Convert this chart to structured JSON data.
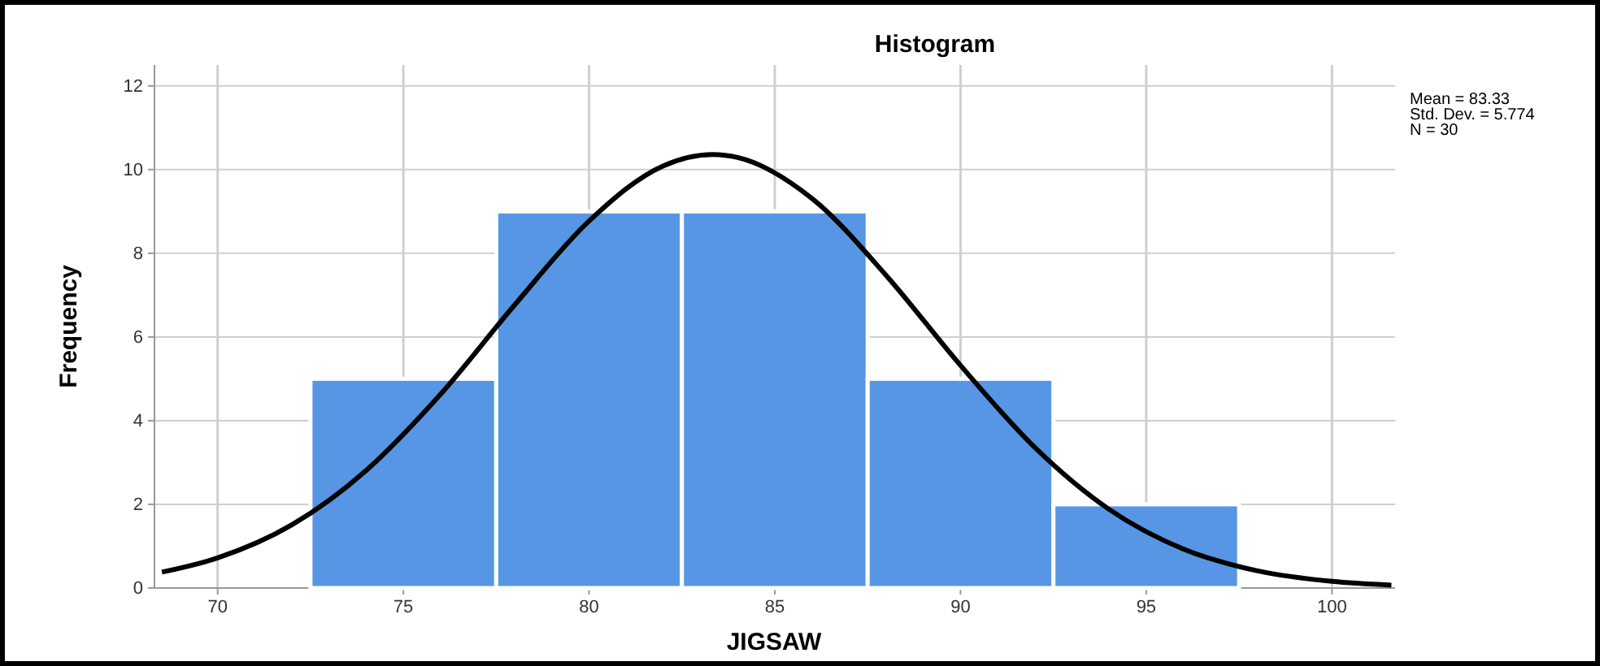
{
  "chart_data": {
    "type": "histogram",
    "title": "Histogram",
    "xlabel": "JIGSAW",
    "ylabel": "Frequency",
    "bins": [
      72.5,
      77.5,
      82.5,
      87.5,
      92.5,
      97.5
    ],
    "values": [
      5,
      9,
      9,
      5,
      2
    ],
    "color": "#5796e4",
    "series": [
      {
        "type": "line",
        "color": "#000000",
        "x": [
          68.5,
          70,
          72,
          74,
          76,
          78,
          80,
          82,
          83.33,
          84,
          86,
          88,
          90,
          92,
          94,
          96,
          98,
          100,
          101.6
        ],
        "values": [
          0.38,
          0.72,
          1.51,
          2.81,
          4.63,
          6.77,
          8.77,
          10.09,
          10.36,
          10.29,
          9.31,
          7.47,
          5.32,
          3.36,
          1.88,
          0.93,
          0.41,
          0.16,
          0.07
        ]
      }
    ],
    "xlim": [
      68.3,
      101.7
    ],
    "xticks": [
      70,
      75,
      80,
      85,
      90,
      95,
      100
    ],
    "ylim": [
      0,
      12.5
    ],
    "yticks": [
      0,
      2,
      4,
      6,
      8,
      10,
      12
    ],
    "grid": true,
    "marker": "none",
    "annotations": [
      "Mean = 83.33",
      "Std. Dev. = 5.774",
      "N = 30"
    ]
  }
}
